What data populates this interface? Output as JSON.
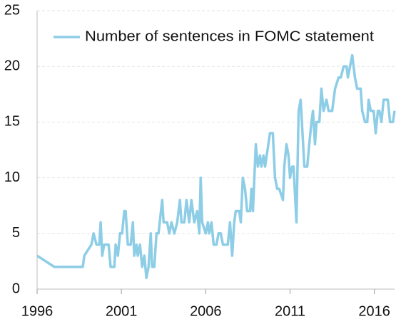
{
  "chart_data": {
    "type": "line",
    "x": [
      1996.0,
      1997.02,
      1998.71,
      1998.8,
      1999.22,
      1999.35,
      1999.52,
      1999.69,
      1999.77,
      1999.86,
      1999.98,
      2000.24,
      2000.36,
      2000.58,
      2000.66,
      2000.79,
      2000.92,
      2001.04,
      2001.17,
      2001.25,
      2001.38,
      2001.55,
      2001.68,
      2001.76,
      2001.89,
      2001.97,
      2002.1,
      2002.23,
      2002.36,
      2002.48,
      2002.61,
      2002.74,
      2002.82,
      2002.95,
      2003.08,
      2003.2,
      2003.42,
      2003.5,
      2003.71,
      2003.84,
      2003.97,
      2004.14,
      2004.31,
      2004.47,
      2004.56,
      2004.73,
      2004.86,
      2005.02,
      2005.15,
      2005.32,
      2005.49,
      2005.62,
      2005.7,
      2005.79,
      2006.0,
      2006.13,
      2006.21,
      2006.34,
      2006.47,
      2006.64,
      2006.76,
      2006.89,
      2007.02,
      2007.31,
      2007.44,
      2007.57,
      2007.69,
      2007.78,
      2007.99,
      2008.08,
      2008.2,
      2008.33,
      2008.46,
      2008.63,
      2008.71,
      2008.8,
      2008.97,
      2009.09,
      2009.22,
      2009.3,
      2009.43,
      2009.52,
      2009.81,
      2009.98,
      2010.11,
      2010.24,
      2010.36,
      2010.58,
      2010.66,
      2010.79,
      2010.91,
      2011.0,
      2011.13,
      2011.21,
      2011.38,
      2011.51,
      2011.63,
      2011.85,
      2012.02,
      2012.14,
      2012.27,
      2012.36,
      2012.48,
      2012.57,
      2012.74,
      2012.86,
      2012.99,
      2013.16,
      2013.29,
      2013.5,
      2013.67,
      2013.88,
      2014.01,
      2014.18,
      2014.35,
      2014.43,
      2014.56,
      2014.69,
      2014.85,
      2014.98,
      2015.19,
      2015.28,
      2015.45,
      2015.58,
      2015.66,
      2015.79,
      2015.96,
      2016.08,
      2016.21,
      2016.3,
      2016.42,
      2016.55,
      2016.8,
      2016.93,
      2017.1,
      2017.2
    ],
    "series": [
      {
        "name": "Number of sentences in FOMC statement",
        "color": "#8ecde6",
        "values": [
          3,
          2,
          2,
          3,
          4,
          5,
          4,
          4,
          6,
          3,
          4,
          4,
          2,
          2,
          4,
          3,
          5,
          5,
          7,
          7,
          4,
          4,
          6,
          3,
          4,
          3,
          4,
          2,
          3,
          1,
          2,
          5,
          2,
          2,
          5,
          5,
          8,
          6,
          6,
          5,
          6,
          5,
          6,
          8,
          6,
          6,
          8,
          6,
          8,
          6,
          7,
          5,
          10,
          6,
          5,
          6,
          5,
          6,
          4,
          4,
          5,
          5,
          4,
          4,
          6,
          3,
          6,
          7,
          7,
          6,
          10,
          9,
          7,
          7,
          9,
          7,
          13,
          11,
          12,
          11,
          12,
          11,
          14,
          14,
          10,
          9,
          9,
          8,
          11,
          13,
          12,
          10,
          11,
          11,
          6,
          16,
          17,
          11,
          11,
          13,
          15,
          16,
          13,
          15,
          15,
          18,
          16,
          17,
          16,
          16,
          18,
          19,
          19,
          20,
          20,
          19,
          20,
          21,
          19,
          18,
          18,
          16,
          15,
          15,
          17,
          16,
          16,
          14,
          16,
          16,
          15,
          17,
          17,
          15,
          15,
          16
        ]
      }
    ],
    "xlim": [
      1996,
      2017.2
    ],
    "xticks": [
      1996,
      2001,
      2006,
      2011,
      2016
    ],
    "ylim": [
      0,
      25
    ],
    "yticks": [
      0,
      5,
      10,
      15,
      20,
      25
    ],
    "grid": true,
    "legend": "upper left"
  }
}
